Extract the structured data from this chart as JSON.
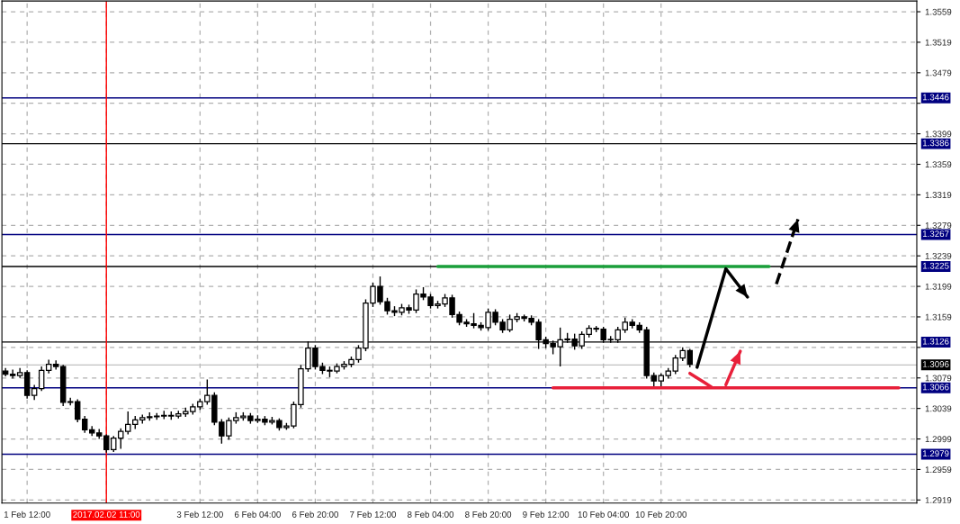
{
  "chart_data": {
    "type": "candlestick",
    "categories": [
      null,
      null,
      null,
      "1 Feb 12:00",
      null,
      null,
      null,
      null,
      null,
      null,
      null,
      null,
      null,
      null,
      "2017.02.02 11:00",
      null,
      null,
      null,
      null,
      null,
      null,
      null,
      null,
      null,
      null,
      null,
      null,
      "3 Feb 12:00",
      null,
      null,
      null,
      null,
      null,
      null,
      null,
      "6 Feb 04:00",
      null,
      null,
      null,
      null,
      null,
      null,
      null,
      "6 Feb 20:00",
      null,
      null,
      null,
      null,
      null,
      null,
      null,
      "7 Feb 12:00",
      null,
      null,
      null,
      null,
      null,
      null,
      null,
      "8 Feb 04:00",
      null,
      null,
      null,
      null,
      null,
      null,
      null,
      "8 Feb 20:00",
      null,
      null,
      null,
      null,
      null,
      null,
      null,
      "9 Feb 12:00",
      null,
      null,
      null,
      null,
      null,
      null,
      null,
      "10 Feb 04:00",
      null,
      null,
      null,
      null,
      null,
      null,
      null,
      "10 Feb 20:00",
      null,
      null,
      null,
      null,
      null,
      null,
      null,
      null,
      null,
      null,
      null,
      null,
      null,
      null,
      null,
      null,
      null,
      null,
      null,
      null,
      null,
      null,
      null,
      null,
      null,
      null,
      null,
      null,
      null,
      null,
      null,
      null,
      null,
      null,
      null
    ],
    "ohlc": [
      [
        1.3088,
        1.3092,
        1.3081,
        1.3084
      ],
      [
        1.3084,
        1.309,
        1.3078,
        1.3082
      ],
      [
        1.3082,
        1.3092,
        1.3079,
        1.3086
      ],
      [
        1.3086,
        1.3089,
        1.3052,
        1.3056
      ],
      [
        1.3056,
        1.307,
        1.305,
        1.3065
      ],
      [
        1.3065,
        1.3094,
        1.3062,
        1.3089
      ],
      [
        1.3089,
        1.3103,
        1.3085,
        1.3097
      ],
      [
        1.3097,
        1.3102,
        1.309,
        1.3094
      ],
      [
        1.3094,
        1.3096,
        1.3042,
        1.3047
      ],
      [
        1.3047,
        1.3053,
        1.3043,
        1.3048
      ],
      [
        1.3048,
        1.3051,
        1.3021,
        1.3025
      ],
      [
        1.3025,
        1.3029,
        1.3007,
        1.3011
      ],
      [
        1.3011,
        1.3016,
        1.3003,
        1.3007
      ],
      [
        1.3007,
        1.3012,
        1.2999,
        1.3003
      ],
      [
        1.3003,
        1.3005,
        1.2981,
        1.2985
      ],
      [
        1.2985,
        1.3003,
        1.2982,
        1.3
      ],
      [
        1.3,
        1.3013,
        1.2986,
        1.3009
      ],
      [
        1.3009,
        1.3035,
        1.3005,
        1.3018
      ],
      [
        1.3018,
        1.3029,
        1.3012,
        1.3024
      ],
      [
        1.3024,
        1.3031,
        1.3019,
        1.3027
      ],
      [
        1.3027,
        1.3034,
        1.3023,
        1.3028
      ],
      [
        1.3028,
        1.3033,
        1.3024,
        1.3029
      ],
      [
        1.3029,
        1.3036,
        1.3025,
        1.303
      ],
      [
        1.303,
        1.3035,
        1.3024,
        1.3029
      ],
      [
        1.3029,
        1.3036,
        1.3026,
        1.3032
      ],
      [
        1.3032,
        1.304,
        1.3028,
        1.3035
      ],
      [
        1.3035,
        1.3045,
        1.3031,
        1.3041
      ],
      [
        1.3041,
        1.3052,
        1.3037,
        1.3048
      ],
      [
        1.3048,
        1.3077,
        1.3044,
        1.3056
      ],
      [
        1.3056,
        1.306,
        1.3017,
        1.3021
      ],
      [
        1.3021,
        1.3025,
        1.2993,
        1.3003
      ],
      [
        1.3003,
        1.3027,
        1.2998,
        1.3023
      ],
      [
        1.3023,
        1.3034,
        1.3019,
        1.3027
      ],
      [
        1.3027,
        1.3034,
        1.3023,
        1.3029
      ],
      [
        1.3029,
        1.3033,
        1.3019,
        1.3023
      ],
      [
        1.3023,
        1.303,
        1.302,
        1.3025
      ],
      [
        1.3025,
        1.3029,
        1.3017,
        1.3021
      ],
      [
        1.3021,
        1.3028,
        1.3018,
        1.3023
      ],
      [
        1.3023,
        1.3026,
        1.301,
        1.3014
      ],
      [
        1.3014,
        1.302,
        1.3011,
        1.3016
      ],
      [
        1.3016,
        1.3048,
        1.3013,
        1.3044
      ],
      [
        1.3044,
        1.3096,
        1.304,
        1.3091
      ],
      [
        1.3091,
        1.3127,
        1.3087,
        1.3118
      ],
      [
        1.3118,
        1.3122,
        1.309,
        1.3094
      ],
      [
        1.3094,
        1.3099,
        1.3084,
        1.3089
      ],
      [
        1.3089,
        1.3094,
        1.308,
        1.3088
      ],
      [
        1.3088,
        1.3098,
        1.3085,
        1.3094
      ],
      [
        1.3094,
        1.3101,
        1.309,
        1.3097
      ],
      [
        1.3097,
        1.3107,
        1.3093,
        1.3103
      ],
      [
        1.3103,
        1.3122,
        1.3099,
        1.3118
      ],
      [
        1.3118,
        1.3182,
        1.3114,
        1.3177
      ],
      [
        1.3177,
        1.3204,
        1.3172,
        1.3199
      ],
      [
        1.3199,
        1.3212,
        1.3175,
        1.3179
      ],
      [
        1.3179,
        1.3184,
        1.3162,
        1.3167
      ],
      [
        1.3167,
        1.3173,
        1.316,
        1.3165
      ],
      [
        1.3165,
        1.3176,
        1.3161,
        1.3171
      ],
      [
        1.3171,
        1.3175,
        1.3163,
        1.3168
      ],
      [
        1.3168,
        1.3195,
        1.3164,
        1.3189
      ],
      [
        1.3189,
        1.3198,
        1.3181,
        1.3185
      ],
      [
        1.3185,
        1.3189,
        1.317,
        1.3174
      ],
      [
        1.3174,
        1.318,
        1.317,
        1.3176
      ],
      [
        1.3176,
        1.3189,
        1.3172,
        1.3184
      ],
      [
        1.3184,
        1.3188,
        1.3158,
        1.3162
      ],
      [
        1.3162,
        1.3166,
        1.3148,
        1.3152
      ],
      [
        1.3152,
        1.3156,
        1.3146,
        1.315
      ],
      [
        1.315,
        1.3164,
        1.3144,
        1.3148
      ],
      [
        1.3148,
        1.3152,
        1.3141,
        1.3145
      ],
      [
        1.3145,
        1.317,
        1.3141,
        1.3165
      ],
      [
        1.3165,
        1.3169,
        1.3148,
        1.3152
      ],
      [
        1.3152,
        1.3156,
        1.3138,
        1.3142
      ],
      [
        1.3142,
        1.3162,
        1.3139,
        1.3156
      ],
      [
        1.3156,
        1.3164,
        1.3152,
        1.3159
      ],
      [
        1.3159,
        1.3162,
        1.3153,
        1.3157
      ],
      [
        1.3157,
        1.3161,
        1.3148,
        1.3152
      ],
      [
        1.3152,
        1.3156,
        1.3117,
        1.3129
      ],
      [
        1.3129,
        1.3133,
        1.3118,
        1.3124
      ],
      [
        1.3124,
        1.3128,
        1.311,
        1.312
      ],
      [
        1.312,
        1.3145,
        1.3094,
        1.3129
      ],
      [
        1.3129,
        1.3138,
        1.3125,
        1.313
      ],
      [
        1.313,
        1.3137,
        1.3116,
        1.3121
      ],
      [
        1.3121,
        1.314,
        1.3117,
        1.3136
      ],
      [
        1.3136,
        1.3148,
        1.3132,
        1.3144
      ],
      [
        1.3144,
        1.3147,
        1.3139,
        1.3143
      ],
      [
        1.3143,
        1.3146,
        1.3125,
        1.3129
      ],
      [
        1.3129,
        1.3134,
        1.3125,
        1.3129
      ],
      [
        1.3129,
        1.3146,
        1.3125,
        1.3142
      ],
      [
        1.3142,
        1.3158,
        1.3138,
        1.3152
      ],
      [
        1.3152,
        1.3156,
        1.3144,
        1.3148
      ],
      [
        1.3148,
        1.3152,
        1.3138,
        1.3142
      ],
      [
        1.3142,
        1.3146,
        1.3078,
        1.3082
      ],
      [
        1.3082,
        1.3086,
        1.3065,
        1.3075
      ],
      [
        1.3075,
        1.3085,
        1.3066,
        1.3082
      ],
      [
        1.3082,
        1.3092,
        1.3078,
        1.3088
      ],
      [
        1.3088,
        1.3109,
        1.3084,
        1.3105
      ],
      [
        1.3105,
        1.3119,
        1.3101,
        1.3115
      ],
      [
        1.3115,
        1.3117,
        1.3093,
        1.3097
      ],
      null,
      null,
      null,
      null,
      null,
      null,
      null,
      null,
      null,
      null,
      null,
      null,
      null,
      null,
      null,
      null,
      null,
      null,
      null,
      null,
      null,
      null,
      null,
      null,
      null,
      null,
      null,
      null,
      null,
      null,
      null
    ],
    "series": [
      {
        "type": "line",
        "color": "#1a9e3a",
        "values": [
          null,
          null,
          null,
          null,
          null,
          null,
          null,
          null,
          null,
          null,
          null,
          null,
          null,
          null,
          null,
          null,
          null,
          null,
          null,
          null,
          null,
          null,
          null,
          null,
          null,
          null,
          null,
          null,
          null,
          null,
          null,
          null,
          null,
          null,
          null,
          null,
          null,
          null,
          null,
          null,
          null,
          null,
          null,
          null,
          null,
          null,
          null,
          null,
          null,
          null,
          null,
          null,
          null,
          null,
          null,
          null,
          null,
          null,
          null,
          null,
          1.3225,
          1.3225,
          1.3225,
          1.3225,
          1.3225,
          1.3225,
          1.3225,
          1.3225,
          1.3225,
          1.3225,
          1.3225,
          1.3225,
          1.3225,
          1.3225,
          1.3225,
          1.3225,
          1.3225,
          1.3225,
          1.3225,
          1.3225,
          1.3225,
          1.3225,
          1.3225,
          1.3225,
          1.3225,
          1.3225,
          1.3225,
          1.3225,
          1.3225,
          1.3225,
          1.3225,
          1.3225,
          1.3225,
          1.3225,
          1.3225,
          1.3225,
          1.3225,
          1.3225,
          1.3225,
          1.3225,
          1.3225,
          1.3225,
          1.3225,
          1.3225,
          1.3225,
          1.3225,
          1.3225,
          null,
          null,
          null,
          null,
          null,
          null,
          null,
          null,
          null,
          null,
          null,
          null,
          null,
          null,
          null,
          null,
          null,
          null,
          null,
          null
        ]
      },
      {
        "type": "line",
        "color": "#e8203a",
        "values": [
          null,
          null,
          null,
          null,
          null,
          null,
          null,
          null,
          null,
          null,
          null,
          null,
          null,
          null,
          null,
          null,
          null,
          null,
          null,
          null,
          null,
          null,
          null,
          null,
          null,
          null,
          null,
          null,
          null,
          null,
          null,
          null,
          null,
          null,
          null,
          null,
          null,
          null,
          null,
          null,
          null,
          null,
          null,
          null,
          null,
          null,
          null,
          null,
          null,
          null,
          null,
          null,
          null,
          null,
          null,
          null,
          null,
          null,
          null,
          null,
          null,
          null,
          null,
          null,
          null,
          null,
          null,
          null,
          null,
          null,
          null,
          null,
          null,
          null,
          null,
          null,
          1.3066,
          1.3066,
          1.3066,
          1.3066,
          1.3066,
          1.3066,
          1.3066,
          1.3066,
          1.3066,
          1.3066,
          1.3066,
          1.3066,
          1.3066,
          1.3066,
          1.3066,
          1.3066,
          1.3066,
          1.3066,
          1.3066,
          1.3066,
          1.3066,
          1.3066,
          1.3066,
          1.3066,
          1.3066,
          1.3066,
          1.3066,
          1.3066,
          1.3066,
          1.3066,
          1.3066,
          1.3066,
          1.3066,
          1.3066,
          1.3066,
          1.3066,
          1.3066,
          1.3066,
          1.3066,
          1.3066,
          1.3066,
          1.3066,
          1.3066,
          1.3066,
          1.3066,
          1.3066,
          1.3066,
          1.3066,
          1.3066,
          null,
          null
        ]
      },
      {
        "type": "line",
        "color": "#e8203a",
        "values": [
          null,
          null,
          null,
          null,
          null,
          null,
          null,
          null,
          null,
          null,
          null,
          null,
          null,
          null,
          null,
          null,
          null,
          null,
          null,
          null,
          null,
          null,
          null,
          null,
          null,
          null,
          null,
          null,
          null,
          null,
          null,
          null,
          null,
          null,
          null,
          null,
          null,
          null,
          null,
          null,
          null,
          null,
          null,
          null,
          null,
          null,
          null,
          null,
          null,
          null,
          null,
          null,
          null,
          null,
          null,
          null,
          null,
          null,
          null,
          null,
          null,
          null,
          null,
          null,
          null,
          null,
          null,
          null,
          null,
          null,
          null,
          null,
          null,
          null,
          null,
          null,
          null,
          null,
          null,
          null,
          null,
          null,
          null,
          null,
          null,
          null,
          null,
          null,
          null,
          null,
          null,
          null,
          null,
          null,
          null,
          1.3085,
          1.3079,
          1.3073,
          1.3067,
          null,
          null,
          null,
          null,
          null,
          null,
          null,
          null,
          null,
          null,
          null,
          null,
          null,
          null,
          null,
          null,
          null,
          null,
          null,
          null,
          null,
          null,
          null,
          null,
          null,
          null,
          null,
          null
        ]
      }
    ],
    "ylim": [
      1.2915,
      1.3573
    ],
    "yticks": [
      1.2919,
      1.2959,
      1.2999,
      1.3039,
      1.3079,
      {
        "value": 1.3119,
        "label": null
      },
      1.3159,
      1.3199,
      1.3239,
      1.3279,
      1.3319,
      1.3359,
      1.3399,
      {
        "value": 1.3439,
        "label": null
      },
      1.3479,
      1.3519,
      1.3559
    ],
    "grid": true,
    "ref_lines": [
      {
        "axis": "y",
        "value": 1.3446,
        "label": "1.3446",
        "color": "#000080"
      },
      {
        "axis": "y",
        "value": 1.3386,
        "label": "1.3386",
        "color": "#000000"
      },
      {
        "axis": "y",
        "value": 1.3267,
        "label": "1.3267",
        "color": "#000080"
      },
      {
        "axis": "y",
        "value": 1.3225,
        "label": "1.3225",
        "color": "#000000"
      },
      {
        "axis": "y",
        "value": 1.3126,
        "label": "1.3126",
        "color": "#000000"
      },
      {
        "axis": "y",
        "value": 1.3096,
        "label": "1.3096",
        "color": "#c0c0c0"
      },
      {
        "axis": "y",
        "value": 1.3066,
        "label": "1.3066",
        "color": "#000080"
      },
      {
        "axis": "y",
        "value": 1.2979,
        "label": "1.2979",
        "color": "#000080"
      },
      {
        "axis": "x",
        "value": "2017.02.02 11:00",
        "color": "#ff0000"
      }
    ]
  }
}
